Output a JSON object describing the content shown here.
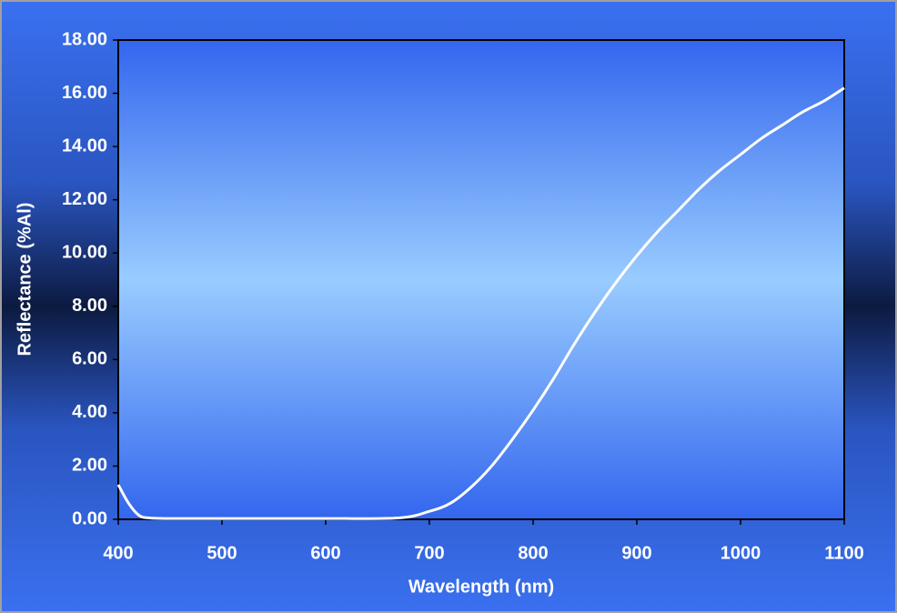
{
  "chart_data": {
    "type": "line",
    "x_label": "Wavelength (nm)",
    "y_label": "Reflectance (%Al)",
    "x": [
      400,
      410,
      420,
      430,
      450,
      500,
      600,
      670,
      700,
      720,
      740,
      760,
      780,
      800,
      820,
      840,
      860,
      880,
      900,
      920,
      940,
      960,
      980,
      1000,
      1020,
      1040,
      1060,
      1080,
      1100
    ],
    "values": [
      1.3,
      0.6,
      0.15,
      0.05,
      0.03,
      0.03,
      0.03,
      0.05,
      0.3,
      0.6,
      1.2,
      2.0,
      3.0,
      4.1,
      5.3,
      6.6,
      7.8,
      8.9,
      9.9,
      10.8,
      11.6,
      12.4,
      13.1,
      13.7,
      14.3,
      14.8,
      15.3,
      15.7,
      16.2
    ],
    "color": "#ffffff",
    "xlim": [
      400,
      1100
    ],
    "xticks": [
      400,
      500,
      600,
      700,
      800,
      900,
      1000,
      1100
    ],
    "ylim": [
      0,
      18
    ],
    "yticks": [
      {
        "value": 0,
        "label": "0.00"
      },
      {
        "value": 2,
        "label": "2.00"
      },
      {
        "value": 4,
        "label": "4.00"
      },
      {
        "value": 6,
        "label": "6.00"
      },
      {
        "value": 8,
        "label": "8.00"
      },
      {
        "value": 10,
        "label": "10.00"
      },
      {
        "value": 12,
        "label": "12.00"
      },
      {
        "value": 14,
        "label": "14.00"
      },
      {
        "value": 16,
        "label": "16.00"
      },
      {
        "value": 18,
        "label": "18.00"
      }
    ]
  }
}
